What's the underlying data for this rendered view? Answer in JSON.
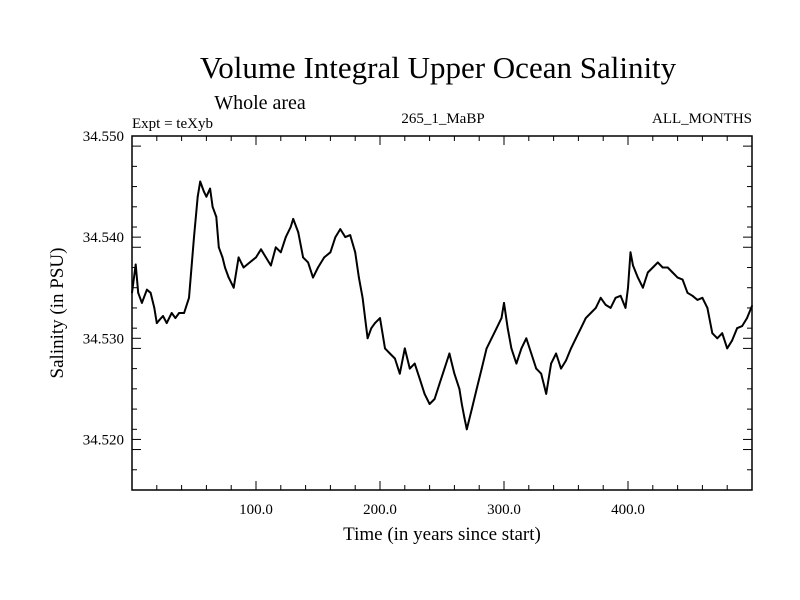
{
  "chart_data": {
    "type": "line",
    "title": "Volume Integral Upper Ocean Salinity",
    "subtitle": "Whole area",
    "annotations": {
      "left": "Expt = teXyb",
      "center": "265_1_MaBP",
      "right": "ALL_MONTHS"
    },
    "xlabel": "Time (in years since start)",
    "ylabel": "Salinity (in PSU)",
    "xlim": [
      0,
      500
    ],
    "ylim": [
      34.515,
      34.55
    ],
    "x_ticks": [
      {
        "value": 100,
        "label": "100.0"
      },
      {
        "value": 200,
        "label": "200.0"
      },
      {
        "value": 300,
        "label": "300.0"
      },
      {
        "value": 400,
        "label": "400.0"
      }
    ],
    "y_ticks": [
      {
        "value": 34.52,
        "label": "34.520"
      },
      {
        "value": 34.53,
        "label": "34.530"
      },
      {
        "value": 34.54,
        "label": "34.540"
      },
      {
        "value": 34.55,
        "label": "34.550"
      }
    ],
    "grid": false,
    "series": [
      {
        "color": "#000000",
        "x": [
          0,
          3,
          5,
          8,
          12,
          15,
          18,
          20,
          22,
          25,
          28,
          32,
          35,
          38,
          42,
          46,
          48,
          50,
          53,
          55,
          58,
          60,
          63,
          65,
          68,
          70,
          73,
          75,
          78,
          82,
          86,
          90,
          95,
          100,
          104,
          108,
          112,
          116,
          120,
          124,
          128,
          130,
          134,
          138,
          142,
          146,
          150,
          155,
          160,
          164,
          168,
          172,
          176,
          180,
          183,
          186,
          188,
          190,
          193,
          196,
          200,
          204,
          208,
          212,
          216,
          220,
          224,
          228,
          232,
          236,
          240,
          244,
          248,
          252,
          256,
          260,
          264,
          266,
          268,
          270,
          274,
          278,
          282,
          286,
          290,
          294,
          298,
          300,
          303,
          306,
          310,
          314,
          318,
          322,
          326,
          330,
          334,
          338,
          342,
          346,
          350,
          354,
          358,
          362,
          366,
          370,
          374,
          378,
          382,
          386,
          390,
          394,
          398,
          400,
          402,
          404,
          408,
          412,
          416,
          420,
          424,
          428,
          432,
          436,
          440,
          444,
          448,
          452,
          456,
          460,
          464,
          468,
          472,
          476,
          480,
          484,
          488,
          492,
          496,
          500
        ],
        "values": [
          34.5345,
          34.5373,
          34.5345,
          34.5335,
          34.5348,
          34.5345,
          34.533,
          34.5315,
          34.5318,
          34.5322,
          34.5315,
          34.5325,
          34.532,
          34.5325,
          34.5325,
          34.534,
          34.537,
          34.54,
          34.544,
          34.5455,
          34.5445,
          34.544,
          34.5448,
          34.543,
          34.542,
          34.539,
          34.538,
          34.537,
          34.536,
          34.535,
          34.538,
          34.537,
          34.5375,
          34.538,
          34.5388,
          34.538,
          34.5372,
          34.539,
          34.5385,
          34.54,
          34.541,
          34.5418,
          34.5405,
          34.538,
          34.5375,
          34.536,
          34.537,
          34.538,
          34.5385,
          34.54,
          34.5408,
          34.54,
          34.5402,
          34.5385,
          34.536,
          34.534,
          34.532,
          34.53,
          34.531,
          34.5315,
          34.532,
          34.529,
          34.5285,
          34.528,
          34.5265,
          34.529,
          34.527,
          34.5275,
          34.526,
          34.5245,
          34.5235,
          34.524,
          34.5255,
          34.527,
          34.5285,
          34.5265,
          34.525,
          34.5235,
          34.5222,
          34.521,
          34.523,
          34.525,
          34.527,
          34.529,
          34.53,
          34.531,
          34.532,
          34.5335,
          34.531,
          34.529,
          34.5275,
          34.529,
          34.53,
          34.5285,
          34.527,
          34.5265,
          34.5245,
          34.5275,
          34.5285,
          34.527,
          34.5278,
          34.529,
          34.53,
          34.531,
          34.532,
          34.5325,
          34.533,
          34.534,
          34.5333,
          34.533,
          34.534,
          34.5342,
          34.533,
          34.535,
          34.5385,
          34.5372,
          34.536,
          34.535,
          34.5365,
          34.537,
          34.5375,
          34.537,
          34.537,
          34.5365,
          34.536,
          34.5358,
          34.5345,
          34.5342,
          34.5338,
          34.534,
          34.533,
          34.5305,
          34.53,
          34.5305,
          34.529,
          34.5298,
          34.531,
          34.5312,
          34.532,
          34.5332
        ]
      }
    ]
  }
}
